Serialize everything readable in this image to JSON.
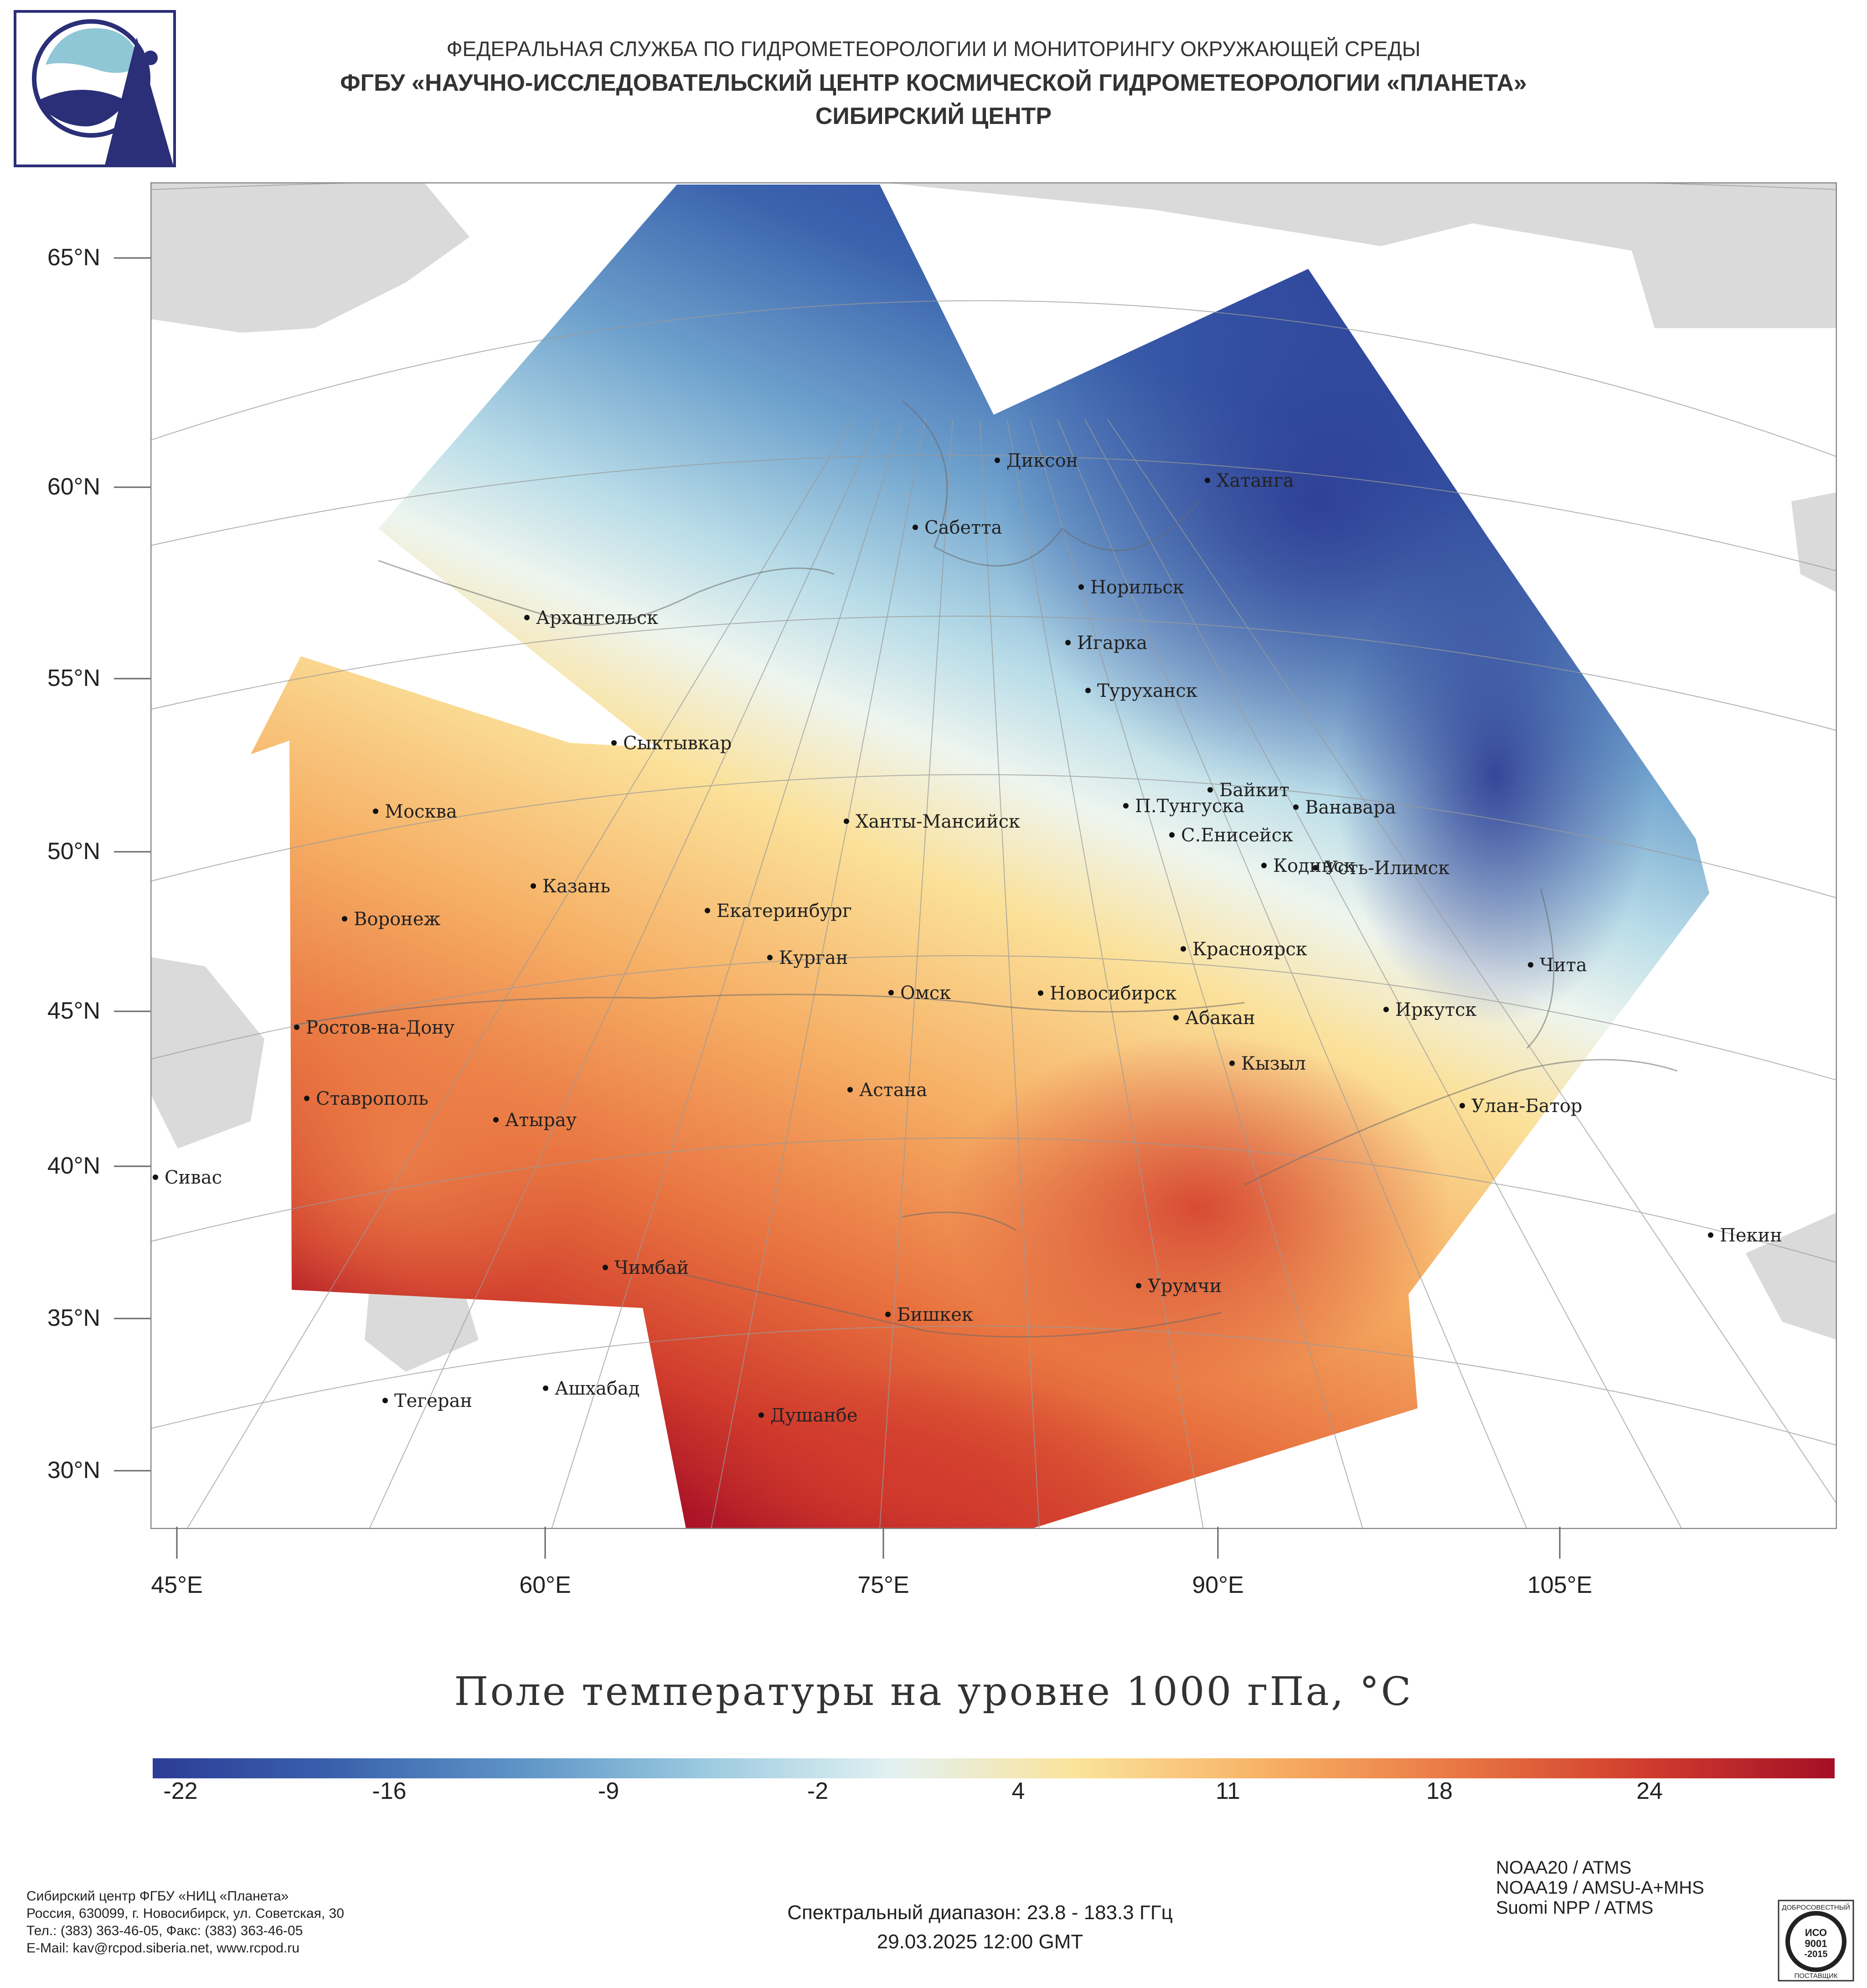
{
  "header": {
    "line1": "ФЕДЕРАЛЬНАЯ СЛУЖБА ПО ГИДРОМЕТЕОРОЛОГИИ И МОНИТОРИНГУ ОКРУЖАЮЩЕЙ СРЕДЫ",
    "line2": "ФГБУ «НАУЧНО-ИССЛЕДОВАТЕЛЬСКИЙ ЦЕНТР КОСМИЧЕСКОЙ ГИДРОМЕТЕОРОЛОГИИ «ПЛАНЕТА»",
    "line3": "СИБИРСКИЙ ЦЕНТР"
  },
  "map": {
    "lat_labels": [
      "65°N",
      "60°N",
      "55°N",
      "50°N",
      "45°N",
      "40°N",
      "35°N",
      "30°N"
    ],
    "lon_labels": [
      "45°E",
      "60°E",
      "75°E",
      "90°E",
      "105°E"
    ],
    "cities": [
      "Диксон",
      "Хатанга",
      "Сабетта",
      "Норильск",
      "Игарка",
      "Туруханск",
      "Архангельск",
      "Сыктывкар",
      "Байкит",
      "Москва",
      "П.Тунгуска",
      "Ванавара",
      "Ханты-Мансийск",
      "С.Енисейск",
      "Кодинск",
      "Усть-Илимск",
      "Казань",
      "Екатеринбург",
      "Воронеж",
      "Красноярск",
      "Курган",
      "Чита",
      "Омск",
      "Новосибирск",
      "Иркутск",
      "Абакан",
      "Ростов-на-Дону",
      "Кызыл",
      "Астана",
      "Ставрополь",
      "Улан-Батор",
      "Атырау",
      "Сивас",
      "Пекин",
      "Чимбай",
      "Урумчи",
      "Бишкек",
      "Ашхабад",
      "Тегеран",
      "Душанбе"
    ]
  },
  "title": "Поле температуры на уровне 1000 гПа, °C",
  "colorbar": {
    "ticks": [
      "-22",
      "-16",
      "-9",
      "-2",
      "4",
      "11",
      "18",
      "24"
    ],
    "range": [
      -25,
      28
    ],
    "colors": [
      "#2c3c96",
      "#3a62ad",
      "#5f95c7",
      "#9ccbe0",
      "#e3f1f2",
      "#fbe39a",
      "#f7b266",
      "#ea7a45",
      "#d2402e",
      "#a50f26"
    ]
  },
  "footer": {
    "org_lines": [
      "Сибирский центр ФГБУ «НИЦ «Планета»",
      "Россия, 630099, г. Новосибирск, ул. Советская, 30",
      "Тел.: (383) 363-46-05, Факс: (383) 363-46-05",
      "E-Mail: kav@rcpod.siberia.net, www.rcpod.ru"
    ],
    "spectral": "Спектральный диапазон: 23.8 - 183.3 ГГц",
    "datetime": "29.03.2025 12:00 GMT",
    "satellites": [
      "NOAA20 / ATMS",
      "NOAA19 / AMSU-A+MHS",
      "Suomi NPP / ATMS"
    ],
    "iso_badge": [
      "ДОБРОСОВЕСТНЫЙ",
      "ИСО",
      "9001",
      "-2015",
      "ПОСТАВЩИК"
    ]
  }
}
